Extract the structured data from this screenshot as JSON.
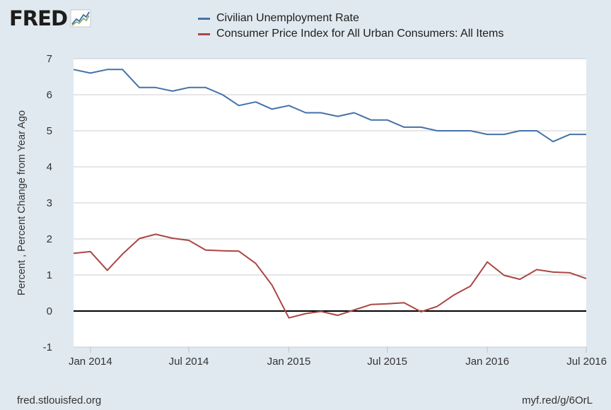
{
  "logo": {
    "text": "FRED"
  },
  "footer": {
    "source": "fred.stlouisfed.org",
    "short_url": "myf.red/g/6OrL"
  },
  "colors": {
    "background": "#e1e9f0",
    "plot_background": "#ffffff",
    "grid": "#c8ccd0",
    "zero_line": "#000000"
  },
  "chart_data": {
    "type": "line",
    "title": "",
    "xlabel": "",
    "ylabel": "Percent , Percent Change from Year Ago",
    "ylim": [
      -1,
      7
    ],
    "yticks": [
      -1,
      0,
      1,
      2,
      3,
      4,
      5,
      6,
      7
    ],
    "x_range": [
      "2013-12-01",
      "2016-07-01"
    ],
    "xticks": [
      {
        "date": "2014-01-01",
        "label": "Jan 2014"
      },
      {
        "date": "2014-07-01",
        "label": "Jul 2014"
      },
      {
        "date": "2015-01-01",
        "label": "Jan 2015"
      },
      {
        "date": "2015-07-01",
        "label": "Jul 2015"
      },
      {
        "date": "2016-01-01",
        "label": "Jan 2016"
      },
      {
        "date": "2016-07-01",
        "label": "Jul 2016"
      }
    ],
    "grid": true,
    "legend_position": "top",
    "x": [
      "2013-12",
      "2014-01",
      "2014-02",
      "2014-03",
      "2014-04",
      "2014-05",
      "2014-06",
      "2014-07",
      "2014-08",
      "2014-09",
      "2014-10",
      "2014-11",
      "2014-12",
      "2015-01",
      "2015-02",
      "2015-03",
      "2015-04",
      "2015-05",
      "2015-06",
      "2015-07",
      "2015-08",
      "2015-09",
      "2015-10",
      "2015-11",
      "2015-12",
      "2016-01",
      "2016-02",
      "2016-03",
      "2016-04",
      "2016-05",
      "2016-06",
      "2016-07"
    ],
    "series": [
      {
        "name": "Civilian Unemployment Rate",
        "color": "#4572a7",
        "values": [
          6.7,
          6.6,
          6.7,
          6.7,
          6.2,
          6.2,
          6.1,
          6.2,
          6.2,
          6.0,
          5.7,
          5.8,
          5.6,
          5.7,
          5.5,
          5.5,
          5.4,
          5.5,
          5.3,
          5.3,
          5.1,
          5.1,
          5.0,
          5.0,
          5.0,
          4.9,
          4.9,
          5.0,
          5.0,
          4.7,
          4.9,
          4.9
        ]
      },
      {
        "name": "Consumer Price Index for All Urban Consumers: All Items",
        "color": "#aa4643",
        "values": [
          1.6,
          1.65,
          1.13,
          1.58,
          2.01,
          2.13,
          2.02,
          1.96,
          1.69,
          1.67,
          1.66,
          1.32,
          0.72,
          -0.19,
          -0.07,
          -0.01,
          -0.12,
          0.03,
          0.18,
          0.2,
          0.23,
          -0.02,
          0.13,
          0.45,
          0.69,
          1.36,
          0.99,
          0.88,
          1.15,
          1.08,
          1.06,
          0.9
        ]
      }
    ]
  }
}
